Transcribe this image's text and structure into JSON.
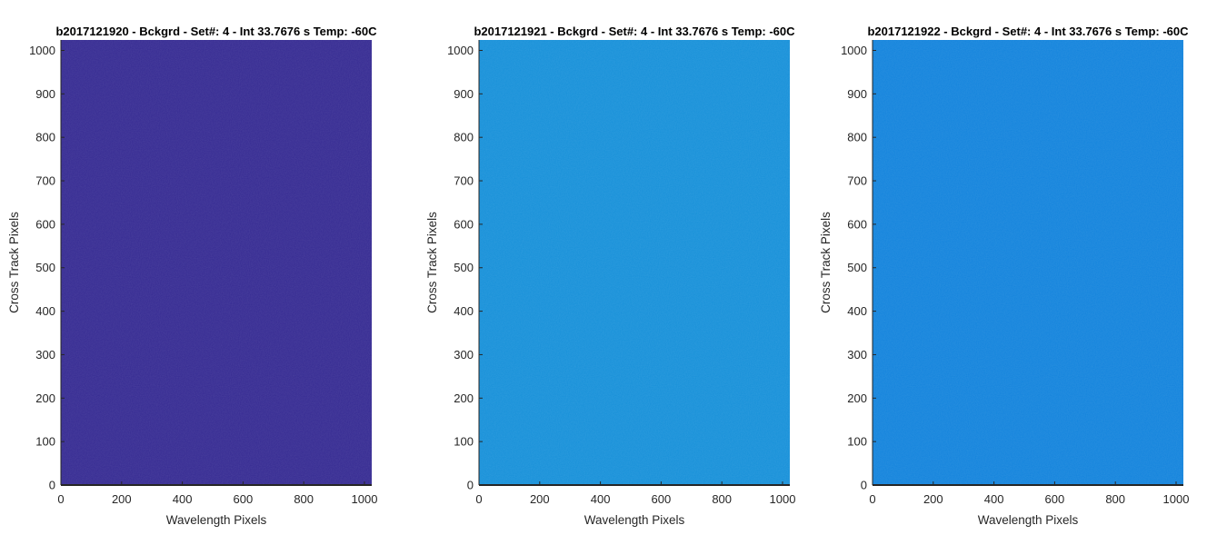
{
  "chart_data": [
    {
      "type": "heatmap",
      "title": "b2017121920 - Bckgrd - Set#: 4 - Int 33.7676 s Temp: -60C",
      "xlabel": "Wavelength Pixels",
      "ylabel": "Cross Track Pixels",
      "xlim": [
        0,
        1024
      ],
      "ylim": [
        0,
        1024
      ],
      "xticks": [
        0,
        200,
        400,
        600,
        800,
        1000
      ],
      "yticks": [
        0,
        100,
        200,
        300,
        400,
        500,
        600,
        700,
        800,
        900,
        1000
      ],
      "fill_color": "#352a92",
      "grid": false
    },
    {
      "type": "heatmap",
      "title": "b2017121921 - Bckgrd - Set#: 4 - Int 33.7676 s Temp: -60C",
      "xlabel": "Wavelength Pixels",
      "ylabel": "Cross Track Pixels",
      "xlim": [
        0,
        1024
      ],
      "ylim": [
        0,
        1024
      ],
      "xticks": [
        0,
        200,
        400,
        600,
        800,
        1000
      ],
      "yticks": [
        0,
        100,
        200,
        300,
        400,
        500,
        600,
        700,
        800,
        900,
        1000
      ],
      "fill_color": "#1690d9",
      "grid": false
    },
    {
      "type": "heatmap",
      "title": "b2017121922 - Bckgrd - Set#: 4 - Int 33.7676 s Temp: -60C",
      "xlabel": "Wavelength Pixels",
      "ylabel": "Cross Track Pixels",
      "xlim": [
        0,
        1024
      ],
      "ylim": [
        0,
        1024
      ],
      "xticks": [
        0,
        200,
        400,
        600,
        800,
        1000
      ],
      "yticks": [
        0,
        100,
        200,
        300,
        400,
        500,
        600,
        700,
        800,
        900,
        1000
      ],
      "fill_color": "#1283dc",
      "grid": false
    }
  ]
}
